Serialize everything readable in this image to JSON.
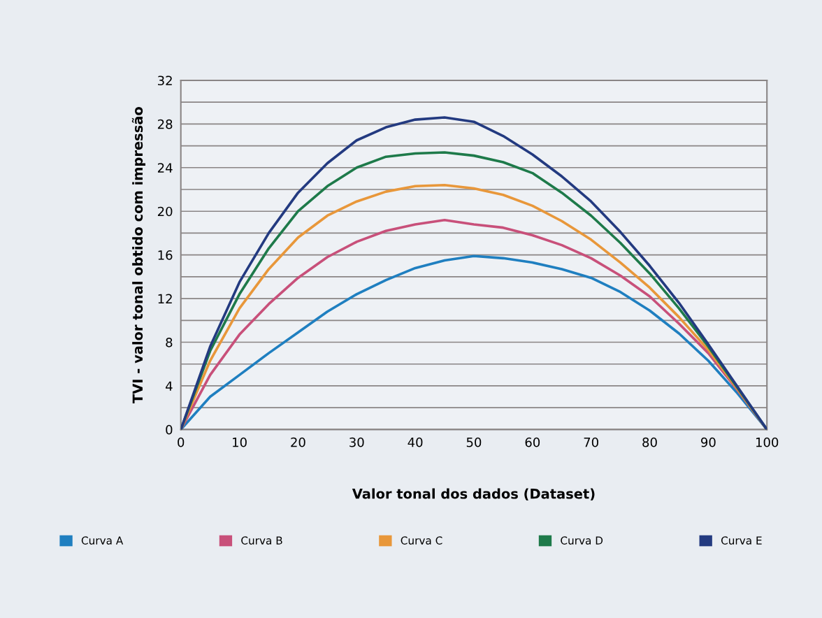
{
  "chart_data": {
    "type": "line",
    "xlabel": "Valor tonal dos dados (Dataset)",
    "ylabel": "TVI - valor tonal obtido com impressão",
    "x": [
      0,
      5,
      10,
      15,
      20,
      25,
      30,
      35,
      40,
      45,
      50,
      55,
      60,
      65,
      70,
      75,
      80,
      85,
      90,
      95,
      100
    ],
    "series": [
      {
        "name": "Curva A",
        "color": "#1f7fc0",
        "values": [
          0,
          3.0,
          5.0,
          7.0,
          8.9,
          10.8,
          12.4,
          13.7,
          14.8,
          15.5,
          15.9,
          15.7,
          15.3,
          14.7,
          13.9,
          12.6,
          10.9,
          8.8,
          6.3,
          3.3,
          0
        ]
      },
      {
        "name": "Curva B",
        "color": "#c8507a",
        "values": [
          0,
          5.0,
          8.7,
          11.5,
          13.9,
          15.8,
          17.2,
          18.2,
          18.8,
          19.2,
          18.8,
          18.5,
          17.8,
          16.9,
          15.7,
          14.1,
          12.2,
          9.7,
          7.0,
          3.6,
          0
        ]
      },
      {
        "name": "Curva C",
        "color": "#e8973a",
        "values": [
          0,
          6.3,
          11.1,
          14.7,
          17.6,
          19.6,
          20.9,
          21.8,
          22.3,
          22.4,
          22.1,
          21.5,
          20.5,
          19.1,
          17.4,
          15.3,
          13.0,
          10.3,
          7.3,
          3.7,
          0
        ]
      },
      {
        "name": "Curva D",
        "color": "#1e7a4a",
        "values": [
          0,
          7.2,
          12.4,
          16.6,
          20.0,
          22.3,
          24.0,
          25.0,
          25.3,
          25.4,
          25.1,
          24.5,
          23.5,
          21.7,
          19.6,
          17.1,
          14.3,
          11.1,
          7.6,
          3.8,
          0
        ]
      },
      {
        "name": "Curva E",
        "color": "#233a80",
        "values": [
          0,
          7.6,
          13.5,
          18.0,
          21.7,
          24.4,
          26.5,
          27.7,
          28.4,
          28.6,
          28.2,
          26.9,
          25.2,
          23.2,
          20.9,
          18.1,
          15.0,
          11.6,
          7.8,
          3.9,
          0
        ]
      }
    ],
    "xlim": [
      0,
      100
    ],
    "xticks": [
      0,
      10,
      20,
      30,
      40,
      50,
      60,
      70,
      80,
      90,
      100
    ],
    "ylim": [
      0,
      32
    ],
    "yticks": [
      0,
      4,
      8,
      12,
      16,
      20,
      24,
      28,
      32
    ],
    "grid": "y",
    "legend": "bottom",
    "marker": "none",
    "line_style": "solid"
  }
}
